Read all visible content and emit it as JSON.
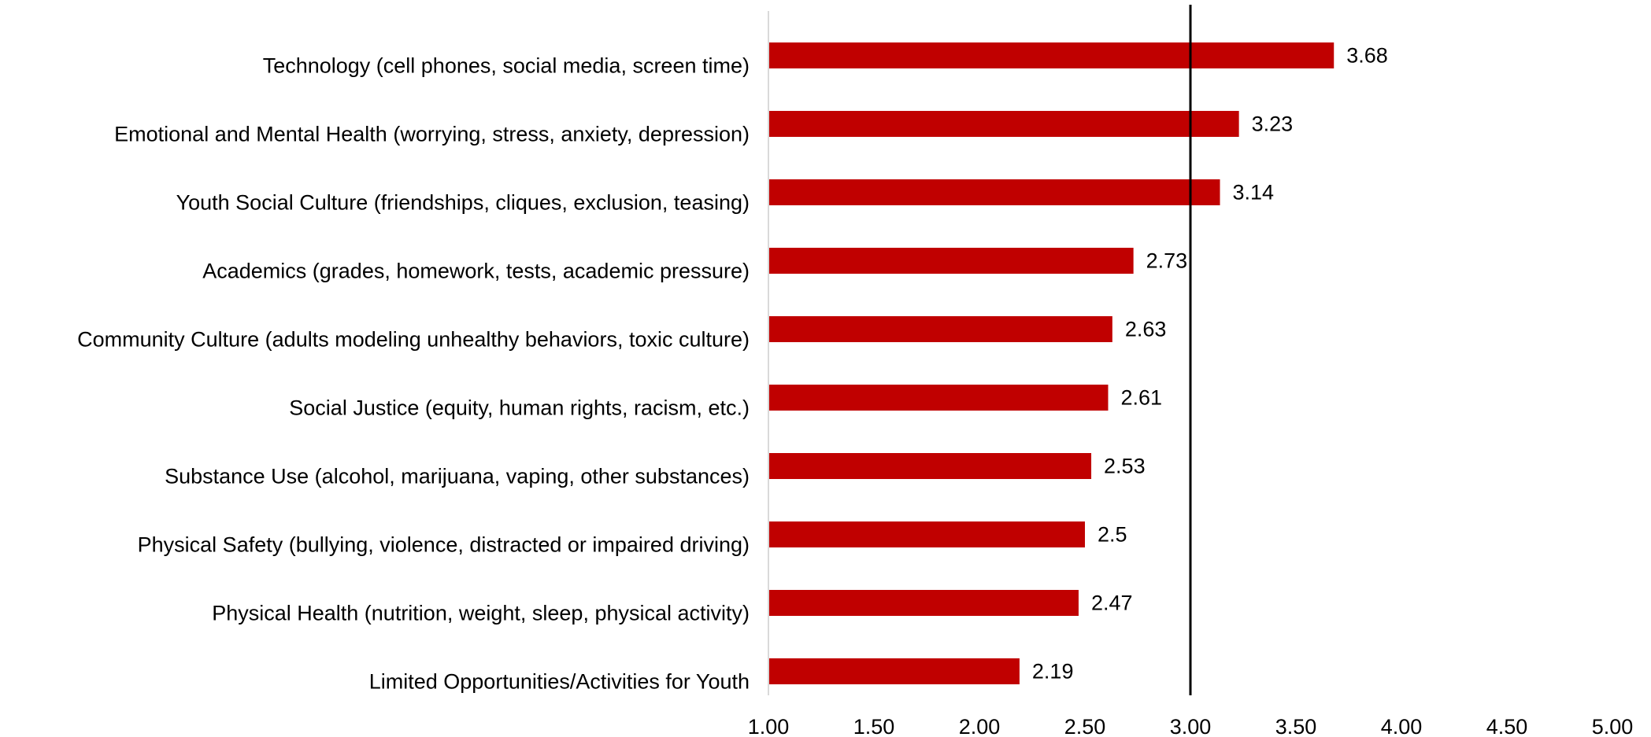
{
  "chart_data": {
    "type": "bar",
    "orientation": "horizontal",
    "categories": [
      "Technology (cell phones, social media, screen time)",
      "Emotional and Mental Health (worrying, stress, anxiety, depression)",
      "Youth Social Culture (friendships, cliques, exclusion, teasing)",
      "Academics (grades, homework, tests, academic pressure)",
      "Community Culture (adults modeling unhealthy behaviors, toxic culture)",
      "Social Justice (equity, human rights, racism, etc.)",
      "Substance Use (alcohol, marijuana, vaping, other substances)",
      "Physical Safety (bullying, violence, distracted or impaired driving)",
      "Physical Health (nutrition, weight, sleep, physical activity)",
      "Limited Opportunities/Activities for Youth"
    ],
    "values": [
      3.68,
      3.23,
      3.14,
      2.73,
      2.63,
      2.61,
      2.53,
      2.5,
      2.47,
      2.19
    ],
    "value_labels": [
      "3.68",
      "3.23",
      "3.14",
      "2.73",
      "2.63",
      "2.61",
      "2.53",
      "2.5",
      "2.47",
      "2.19"
    ],
    "x_ticks": [
      "1.00",
      "1.50",
      "2.00",
      "2.50",
      "3.00",
      "3.50",
      "4.00",
      "4.50",
      "5.00"
    ],
    "xlim": [
      1,
      5
    ],
    "reference_line": 3.0,
    "bar_color": "#c00000",
    "grid": false,
    "legend": "none",
    "title": "",
    "xlabel": "",
    "ylabel": ""
  }
}
